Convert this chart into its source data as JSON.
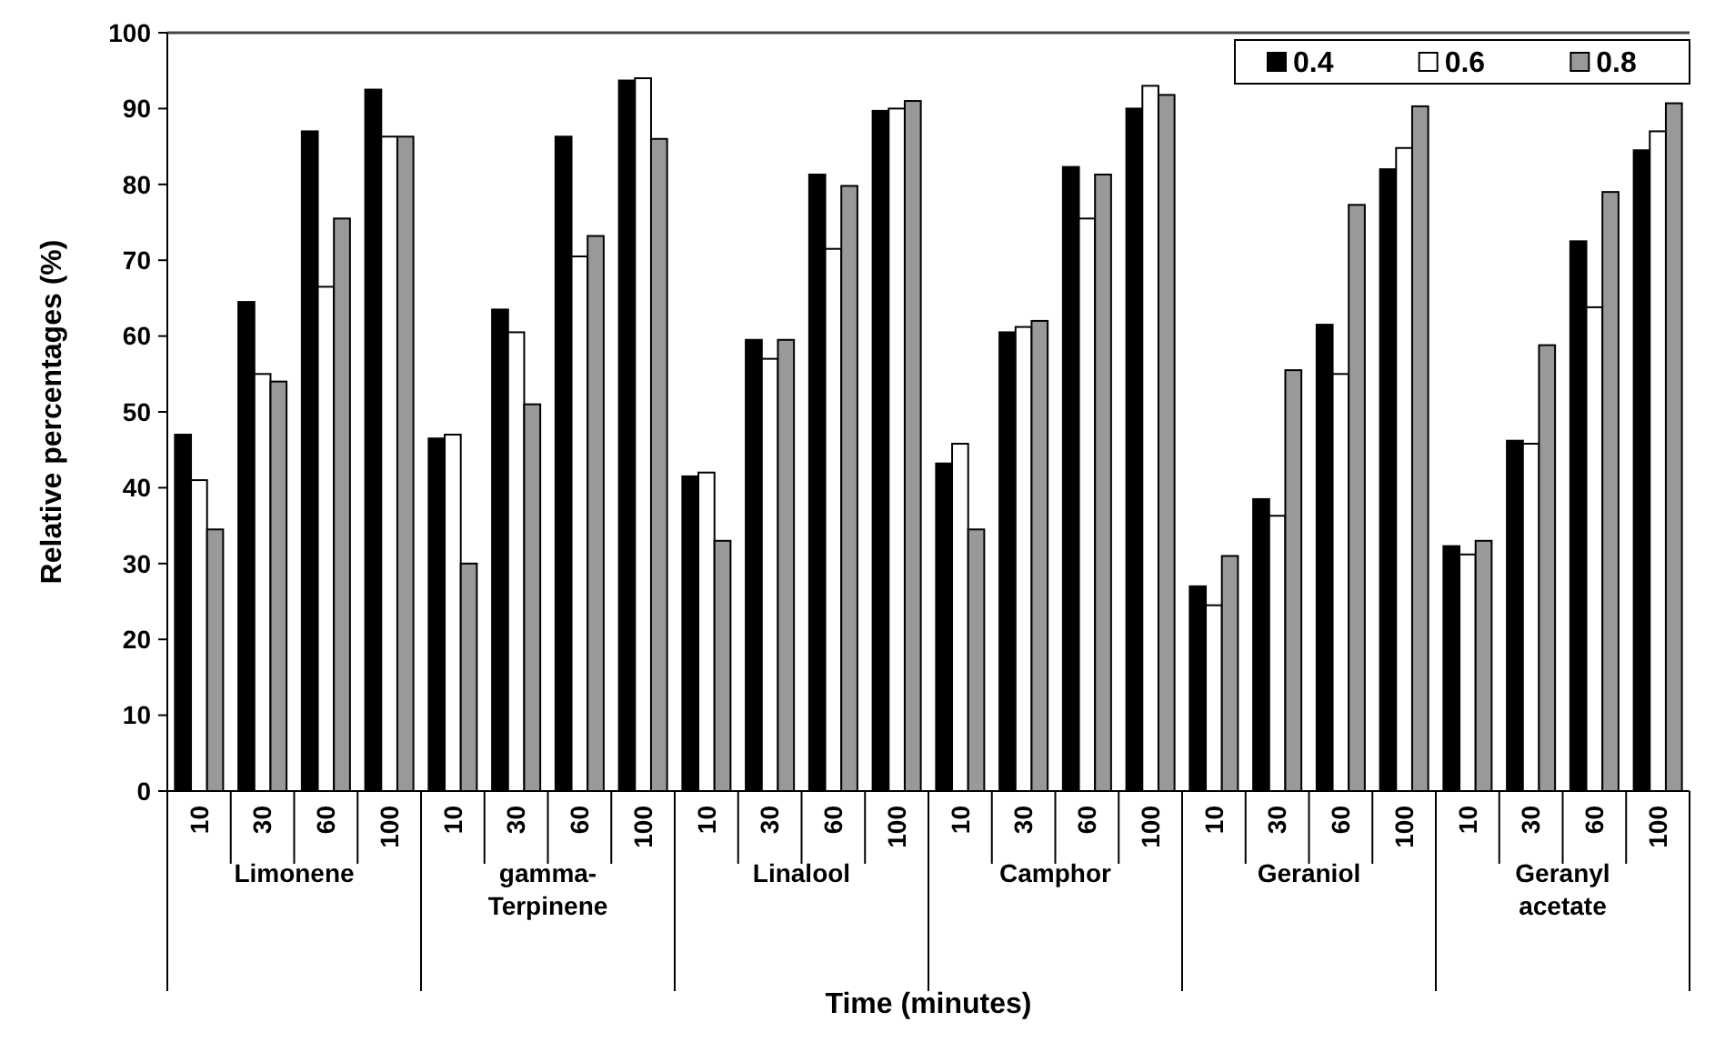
{
  "chart_data": {
    "type": "bar",
    "xlabel": "Time (minutes)",
    "ylabel": "Relative percentages (%)",
    "categories": [
      "10",
      "30",
      "60",
      "100",
      "10",
      "30",
      "60",
      "100",
      "10",
      "30",
      "60",
      "100",
      "10",
      "30",
      "60",
      "100",
      "10",
      "30",
      "60",
      "100",
      "10",
      "30",
      "60",
      "100"
    ],
    "annotations": [
      "Limonene",
      "gamma-Terpinene",
      "Linalool",
      "Camphor",
      "Geraniol",
      "Geranyl acetate"
    ],
    "series": [
      {
        "name": "0.4",
        "color": "#000000",
        "values": [
          47,
          64.5,
          87,
          92.5,
          46.5,
          63.5,
          86.3,
          93.7,
          41.5,
          59.5,
          81.3,
          89.7,
          43.2,
          60.5,
          82.3,
          90,
          27,
          38.5,
          61.5,
          82,
          32.3,
          46.2,
          72.5,
          84.5
        ]
      },
      {
        "name": "0.6",
        "color": "#ffffff",
        "values": [
          41,
          55,
          66.5,
          86.3,
          47,
          60.5,
          70.5,
          94,
          42,
          57,
          71.5,
          90,
          45.8,
          61.2,
          75.5,
          93,
          24.5,
          36.3,
          55,
          84.8,
          31.2,
          45.8,
          63.8,
          87
        ]
      },
      {
        "name": "0.8",
        "color": "#999999",
        "values": [
          34.5,
          54,
          75.5,
          86.3,
          30,
          51,
          73.2,
          86,
          33,
          59.5,
          79.8,
          91,
          34.5,
          62,
          81.3,
          91.8,
          31,
          55.5,
          77.3,
          90.3,
          33,
          58.8,
          79,
          90.7
        ]
      }
    ],
    "ylim": [
      0,
      100
    ],
    "yticks": [
      0,
      10,
      20,
      30,
      40,
      50,
      60,
      70,
      80,
      90,
      100
    ],
    "grid": false,
    "legend": "top right"
  }
}
